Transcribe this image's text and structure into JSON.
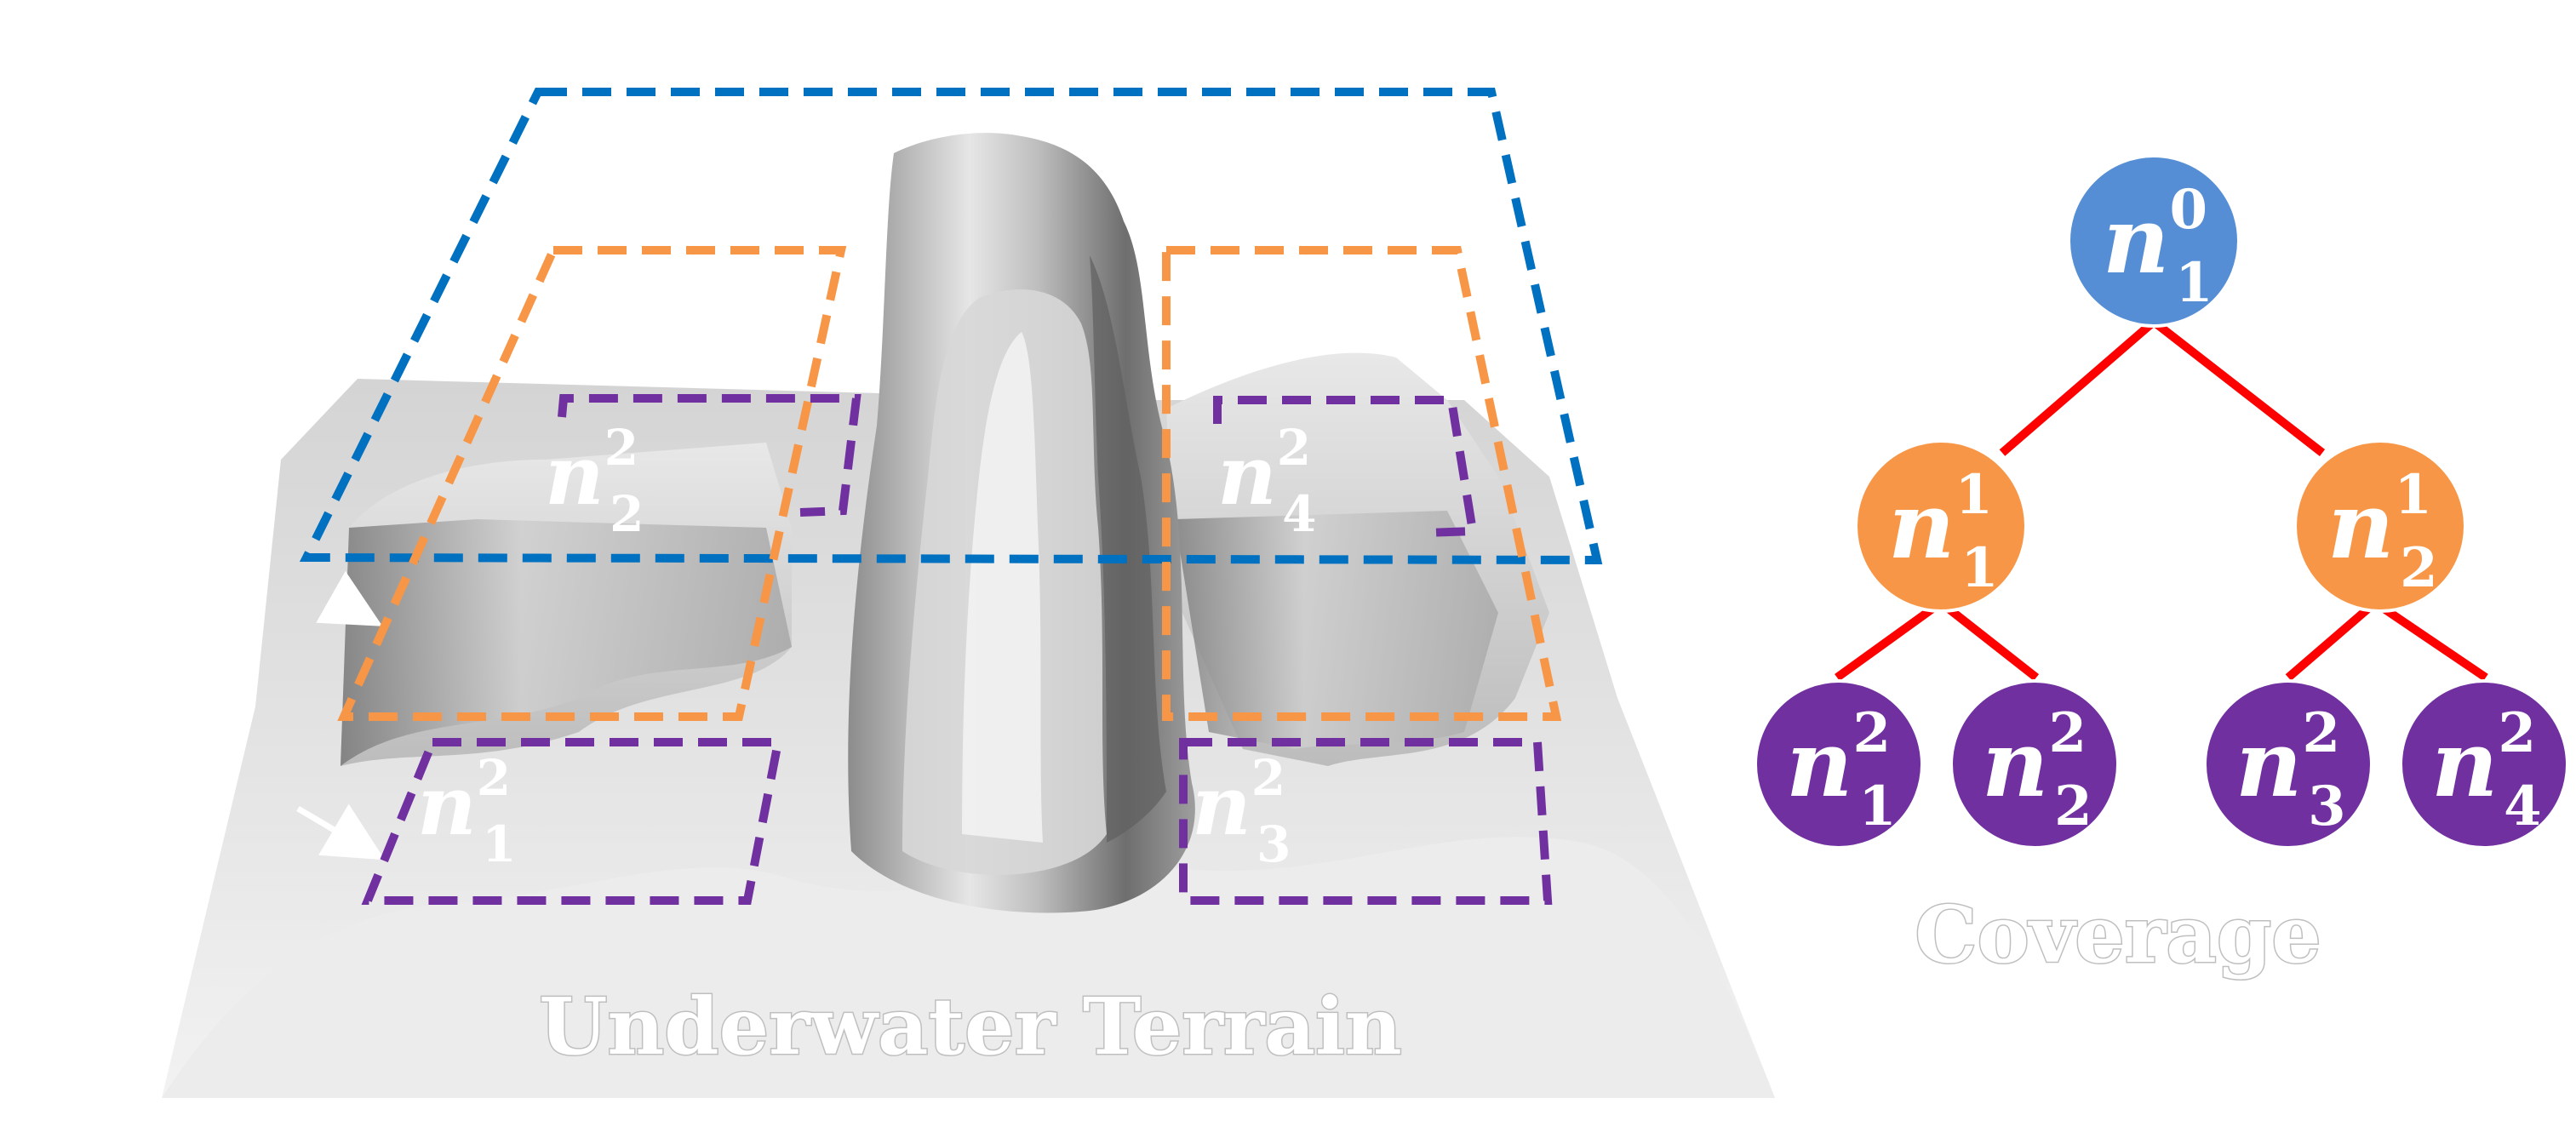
{
  "terrain": {
    "caption": "Underwater Terrain",
    "colors": {
      "level0": "#0070c0",
      "level1": "#f79646",
      "level2": "#7030a0"
    },
    "box_labels": [
      {
        "base": "n",
        "sub": "2",
        "sup": "2"
      },
      {
        "base": "n",
        "sub": "4",
        "sup": "2"
      },
      {
        "base": "n",
        "sub": "1",
        "sup": "2"
      },
      {
        "base": "n",
        "sub": "3",
        "sup": "2"
      },
      {
        "base": "n",
        "sub": "2",
        "sup": ""
      }
    ]
  },
  "tree": {
    "caption": "Coverage",
    "edge_color": "#ff0000",
    "nodes": [
      {
        "id": "n10",
        "base": "n",
        "sub": "1",
        "sup": "0",
        "color": "#558ed5"
      },
      {
        "id": "n11",
        "base": "n",
        "sub": "1",
        "sup": "1",
        "color": "#f79646"
      },
      {
        "id": "n21",
        "base": "n",
        "sub": "2",
        "sup": "1",
        "color": "#f79646"
      },
      {
        "id": "n12",
        "base": "n",
        "sub": "1",
        "sup": "2",
        "color": "#7030a0"
      },
      {
        "id": "n22",
        "base": "n",
        "sub": "2",
        "sup": "2",
        "color": "#7030a0"
      },
      {
        "id": "n32",
        "base": "n",
        "sub": "3",
        "sup": "2",
        "color": "#7030a0"
      },
      {
        "id": "n42",
        "base": "n",
        "sub": "4",
        "sup": "2",
        "color": "#7030a0"
      }
    ]
  }
}
